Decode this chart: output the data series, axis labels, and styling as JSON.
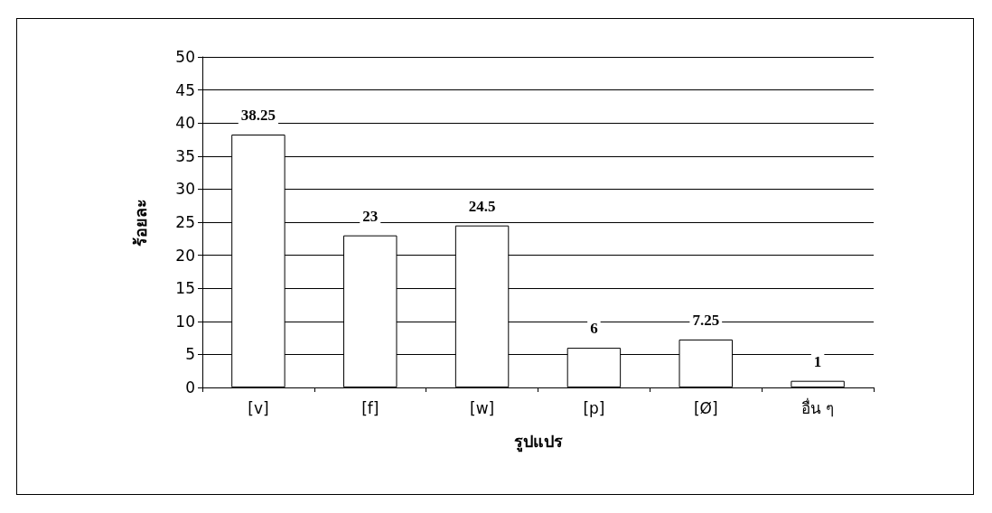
{
  "chart_data": {
    "type": "bar",
    "xlabel": "รูปแปร",
    "ylabel": "ร้อยละ",
    "categories": [
      "[v]",
      "[f]",
      "[w]",
      "[p]",
      "[Ø]",
      "อื่น ๆ"
    ],
    "values": [
      38.25,
      23,
      24.5,
      6,
      7.25,
      1
    ],
    "color": "#ffffff",
    "ylim": [
      0,
      50
    ],
    "yticks": [
      0,
      5,
      10,
      15,
      20,
      25,
      30,
      35,
      40,
      45,
      50
    ],
    "grid": "y",
    "data_labels": true
  }
}
